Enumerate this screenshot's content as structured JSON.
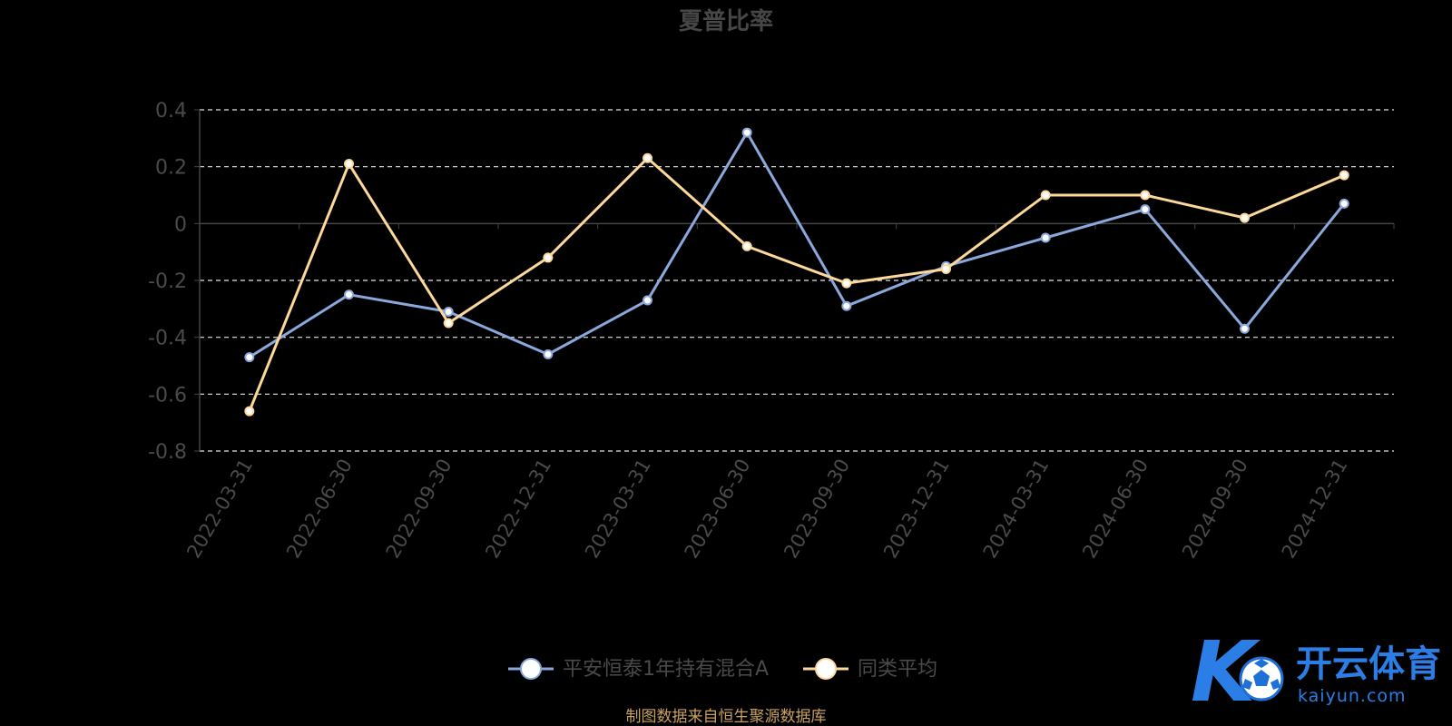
{
  "chart_data": {
    "type": "line",
    "title": "夏普比率",
    "categories": [
      "2022-03-31",
      "2022-06-30",
      "2022-09-30",
      "2022-12-31",
      "2023-03-31",
      "2023-06-30",
      "2023-09-30",
      "2023-12-31",
      "2024-03-31",
      "2024-06-30",
      "2024-09-30",
      "2024-12-31"
    ],
    "ylim": [
      -0.8,
      0.4
    ],
    "yticks": [
      0.4,
      0.2,
      0,
      -0.2,
      -0.4,
      -0.6,
      -0.8
    ],
    "ytick_labels": [
      "0.4",
      "0.2",
      "0",
      "-0.2",
      "-0.4",
      "-0.6",
      "-0.8"
    ],
    "grid": true,
    "legend_position": "bottom-center",
    "series": [
      {
        "name": "平安恒泰1年持有混合A",
        "color": "#8aa8dc",
        "values": [
          -0.47,
          -0.25,
          -0.31,
          -0.46,
          -0.27,
          0.32,
          -0.29,
          -0.15,
          -0.05,
          0.05,
          -0.37,
          0.07
        ]
      },
      {
        "name": "同类平均",
        "color": "#fcd89a",
        "values": [
          -0.66,
          0.21,
          -0.35,
          -0.12,
          0.23,
          -0.08,
          -0.21,
          -0.16,
          0.1,
          0.1,
          0.02,
          0.17
        ]
      }
    ]
  },
  "footer": {
    "source": "制图数据来自恒生聚源数据库"
  },
  "watermark": {
    "name": "开云体育",
    "url": "kaiyun.com",
    "logo_letter": "K",
    "color": "#2a7ee6",
    "icon": "soccer-ball-icon"
  }
}
